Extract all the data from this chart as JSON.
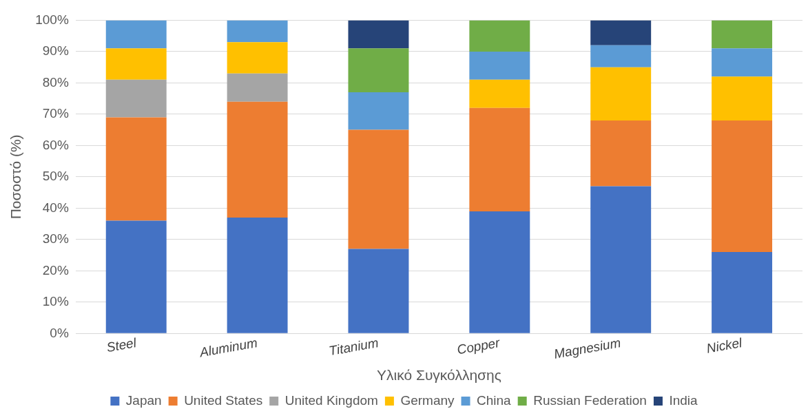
{
  "chart_data": {
    "type": "bar",
    "stacked": true,
    "xlabel": "Υλικό Συγκόλλησης",
    "ylabel": "Ποσοστό (%)",
    "categories": [
      "Steel",
      "Aluminum",
      "Titanium",
      "Copper",
      "Magnesium",
      "Nickel"
    ],
    "series": [
      {
        "name": "Japan",
        "color": "#4472c4",
        "values": [
          36,
          37,
          27,
          39,
          47,
          26
        ]
      },
      {
        "name": "United States",
        "color": "#ed7d31",
        "values": [
          33,
          37,
          38,
          33,
          21,
          42
        ]
      },
      {
        "name": "United Kingdom",
        "color": "#a5a5a5",
        "values": [
          12,
          9,
          null,
          null,
          null,
          null
        ]
      },
      {
        "name": "Germany",
        "color": "#ffc000",
        "values": [
          10,
          10,
          null,
          9,
          17,
          14
        ]
      },
      {
        "name": "China",
        "color": "#5b9bd5",
        "values": [
          9,
          7,
          12,
          9,
          7,
          9
        ]
      },
      {
        "name": "Russian Federation",
        "color": "#70ad47",
        "values": [
          null,
          null,
          14,
          10,
          null,
          9
        ]
      },
      {
        "name": "India",
        "color": "#264478",
        "values": [
          null,
          null,
          9,
          null,
          8,
          null
        ]
      }
    ],
    "ylim": [
      0,
      100
    ],
    "yticks": [
      {
        "value": 0,
        "label": "0%"
      },
      {
        "value": 10,
        "label": "10%"
      },
      {
        "value": 20,
        "label": "20%"
      },
      {
        "value": 30,
        "label": "30%"
      },
      {
        "value": 40,
        "label": "40%"
      },
      {
        "value": 50,
        "label": "50%"
      },
      {
        "value": 60,
        "label": "60%"
      },
      {
        "value": 70,
        "label": "70%"
      },
      {
        "value": 80,
        "label": "80%"
      },
      {
        "value": 90,
        "label": "90%"
      },
      {
        "value": 100,
        "label": "100%"
      }
    ],
    "grid": "y",
    "legend": "bottom"
  }
}
